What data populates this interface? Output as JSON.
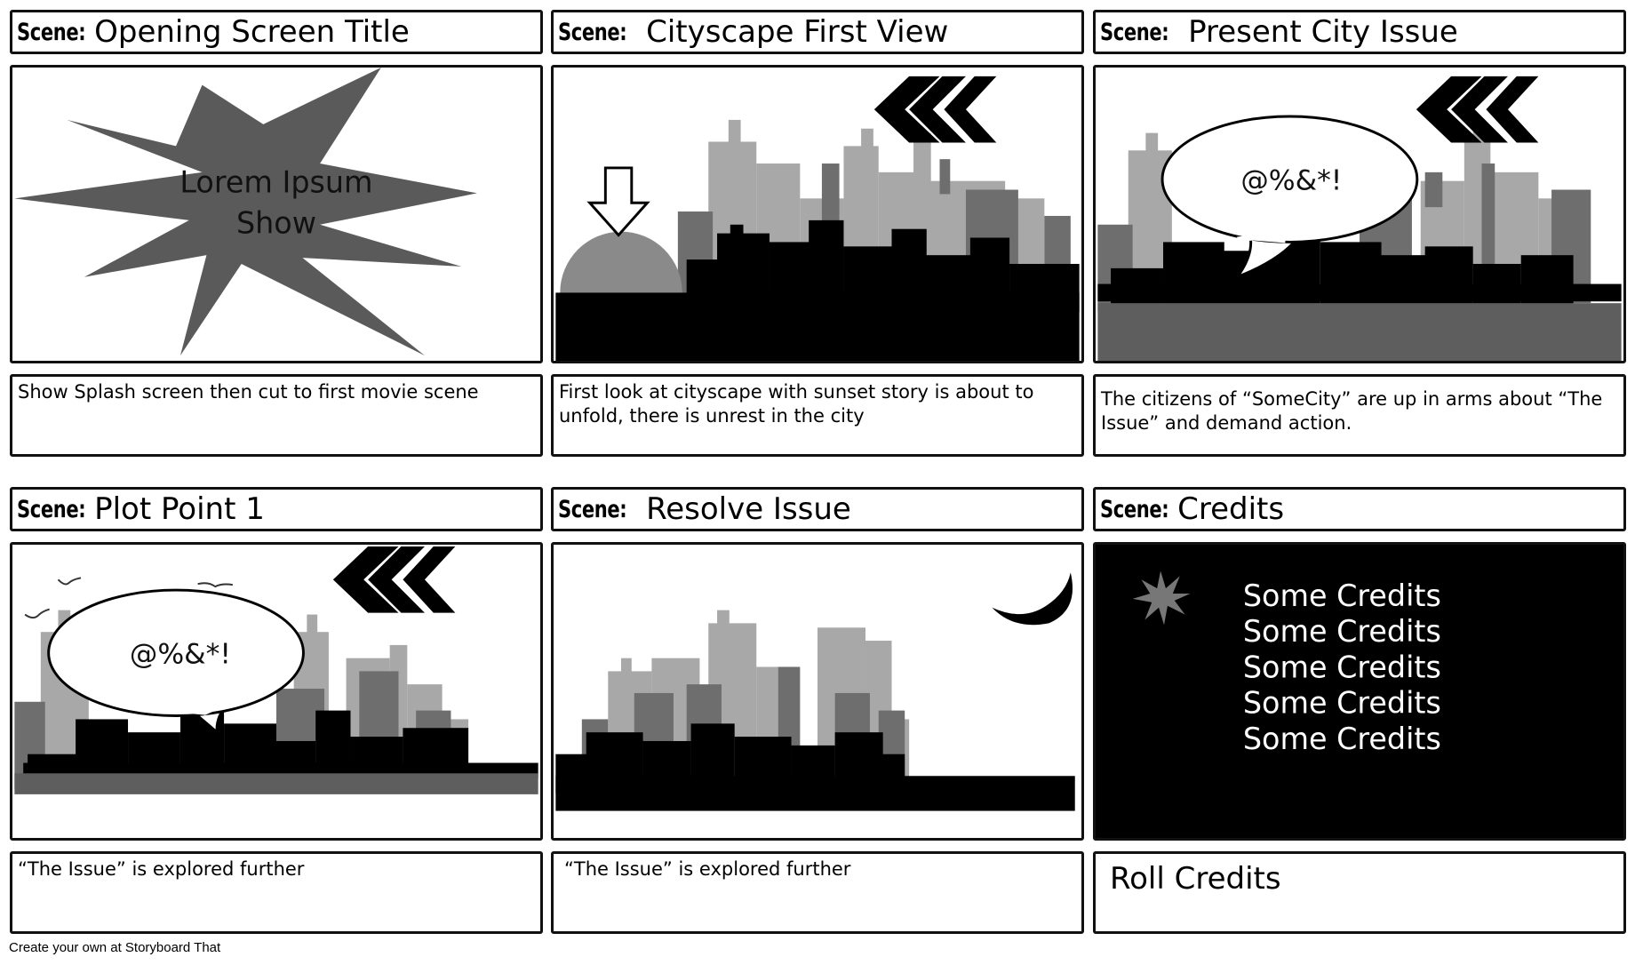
{
  "scene_label": "Scene:",
  "cells": [
    {
      "title": "Opening Screen Title",
      "description": "Show Splash screen then cut to first movie scene",
      "splash_text_line1": "Lorem Ipsum",
      "splash_text_line2": "Show"
    },
    {
      "title": "Cityscape First View",
      "description": "First look at cityscape with sunset story is about to unfold, there is unrest in the city"
    },
    {
      "title": "Present City Issue",
      "description": "The citizens of “SomeCity”  are up in  arms about “The Issue” and demand action.",
      "speech_text": "@%&*!"
    },
    {
      "title": "Plot Point 1",
      "description": "“The Issue” is explored further",
      "speech_text": "@%&*!"
    },
    {
      "title": "Resolve Issue",
      "description": " “The Issue” is explored further"
    },
    {
      "title": "Credits",
      "description": "Roll Credits",
      "credit_lines": [
        "Some Credits",
        "Some Credits",
        "Some Credits",
        "Some Credits",
        "Some Credits"
      ]
    }
  ],
  "footer": "Create your own at Storyboard That",
  "colors": {
    "border": "#111111",
    "dark_gray": "#5a5a5a",
    "mid_gray": "#808080",
    "light_gray": "#b3b3b3",
    "black": "#000000"
  }
}
